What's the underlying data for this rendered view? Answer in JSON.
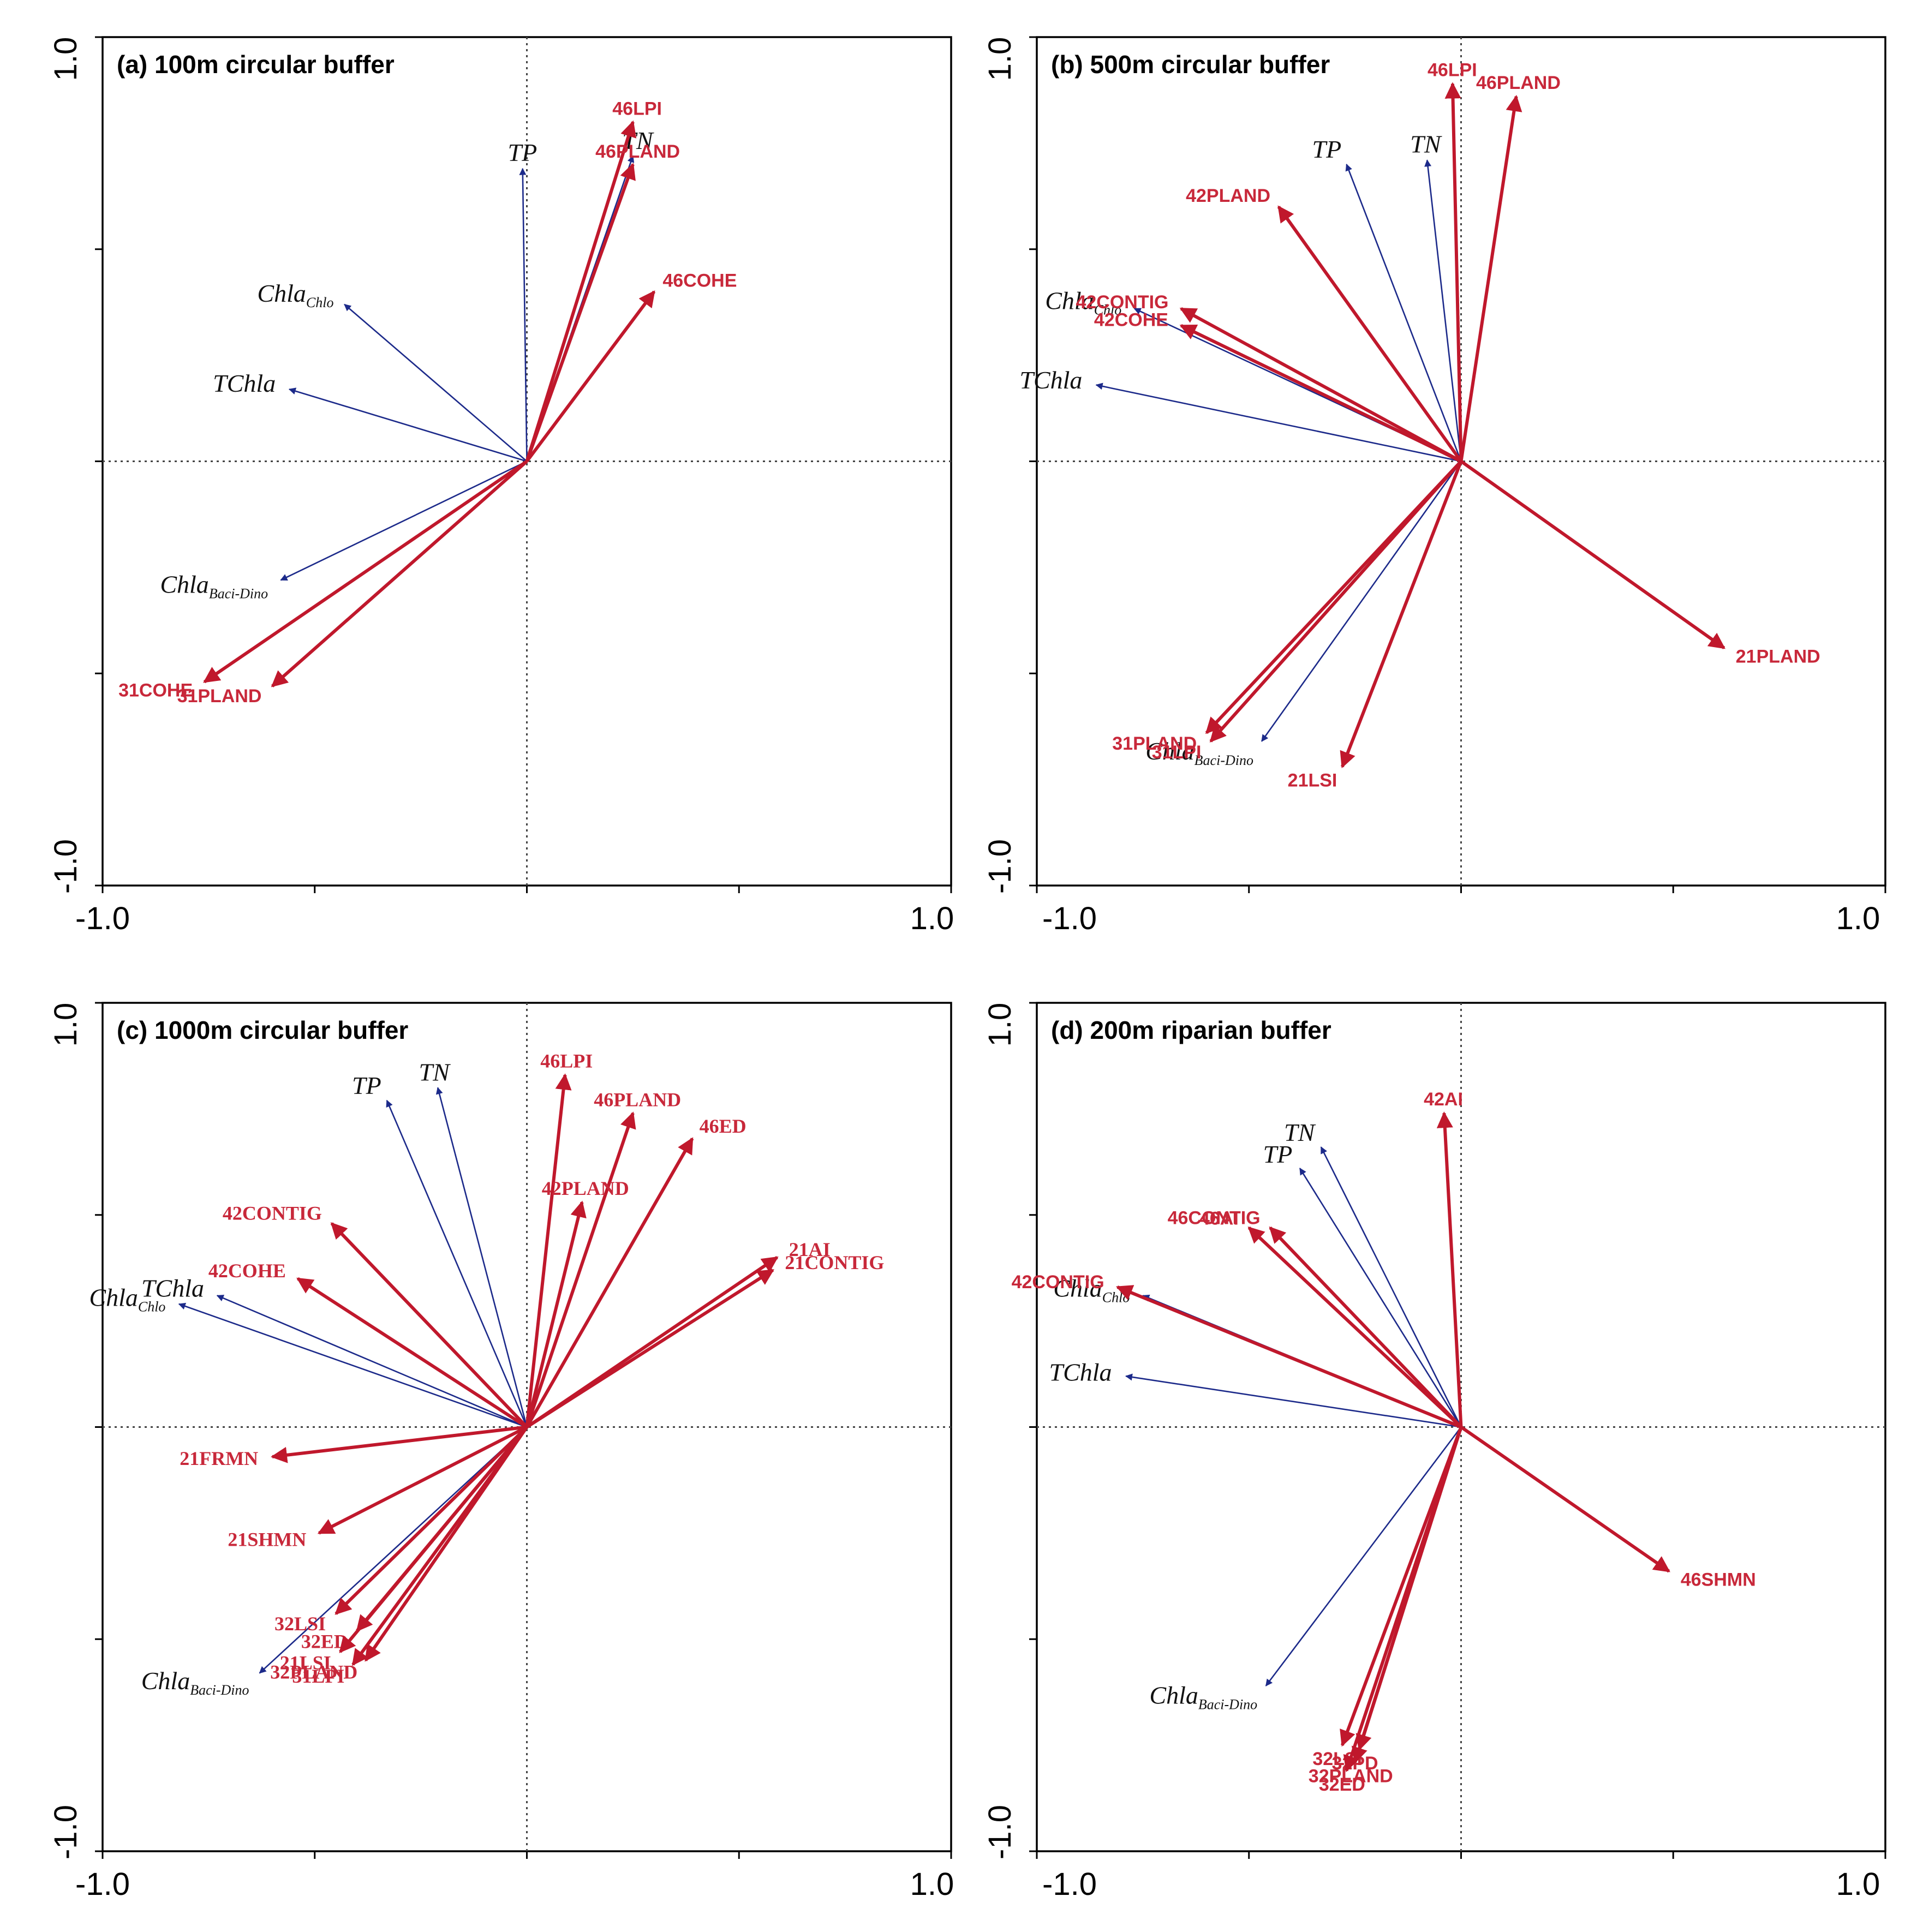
{
  "colors": {
    "environment": "#c0182c",
    "species": "#1c2a8a",
    "axis": "#000000"
  },
  "chart_data": [
    {
      "type": "biplot",
      "title": "(a) 100m circular buffer",
      "xlim": [
        -1.0,
        1.0
      ],
      "ylim": [
        -1.0,
        1.0
      ],
      "x_tick_labels": [
        "-1.0",
        "1.0"
      ],
      "y_tick_labels": [
        "-1.0",
        "1.0"
      ],
      "species": [
        {
          "name": "TP",
          "sub": "",
          "x": -0.01,
          "y": 0.69
        },
        {
          "name": "TN",
          "sub": "",
          "x": 0.25,
          "y": 0.72
        },
        {
          "name": "Chla",
          "sub": "Chlo",
          "x": -0.43,
          "y": 0.37
        },
        {
          "name": "TChla",
          "sub": "",
          "x": -0.56,
          "y": 0.17
        },
        {
          "name": "Chla",
          "sub": "Baci-Dino",
          "x": -0.58,
          "y": -0.28
        }
      ],
      "environment": [
        {
          "name": "46LPI",
          "x": 0.25,
          "y": 0.8
        },
        {
          "name": "46PLAND",
          "x": 0.25,
          "y": 0.7
        },
        {
          "name": "46COHE",
          "x": 0.3,
          "y": 0.4
        },
        {
          "name": "31COHE",
          "x": -0.76,
          "y": -0.52
        },
        {
          "name": "31PLAND",
          "x": -0.6,
          "y": -0.53
        }
      ]
    },
    {
      "type": "biplot",
      "title": "(b) 500m circular buffer",
      "xlim": [
        -1.0,
        1.0
      ],
      "ylim": [
        -1.0,
        1.0
      ],
      "x_tick_labels": [
        "-1.0",
        "1.0"
      ],
      "y_tick_labels": [
        "-1.0",
        "1.0"
      ],
      "species": [
        {
          "name": "TP",
          "sub": "",
          "x": -0.27,
          "y": 0.7
        },
        {
          "name": "TN",
          "sub": "",
          "x": -0.08,
          "y": 0.71
        },
        {
          "name": "Chla",
          "sub": "Chlo",
          "x": -0.77,
          "y": 0.36
        },
        {
          "name": "TChla",
          "sub": "",
          "x": -0.86,
          "y": 0.18
        },
        {
          "name": "Chla",
          "sub": "Baci-Dino",
          "x": -0.47,
          "y": -0.66
        }
      ],
      "environment": [
        {
          "name": "46LPI",
          "x": -0.02,
          "y": 0.89
        },
        {
          "name": "46PLAND",
          "x": 0.13,
          "y": 0.86
        },
        {
          "name": "42PLAND",
          "x": -0.43,
          "y": 0.6
        },
        {
          "name": "42CONTIG",
          "x": -0.66,
          "y": 0.36
        },
        {
          "name": "42COHE",
          "x": -0.66,
          "y": 0.32
        },
        {
          "name": "21PLAND",
          "x": 0.62,
          "y": -0.44
        },
        {
          "name": "31PLAND",
          "x": -0.6,
          "y": -0.64
        },
        {
          "name": "31LPI",
          "x": -0.59,
          "y": -0.66
        },
        {
          "name": "21LSI",
          "x": -0.28,
          "y": -0.72
        }
      ]
    },
    {
      "type": "biplot",
      "title": "(c) 1000m circular buffer",
      "xlim": [
        -1.0,
        1.0
      ],
      "ylim": [
        -1.0,
        1.0
      ],
      "x_tick_labels": [
        "-1.0",
        "1.0"
      ],
      "y_tick_labels": [
        "-1.0",
        "1.0"
      ],
      "species": [
        {
          "name": "TP",
          "sub": "",
          "x": -0.33,
          "y": 0.77
        },
        {
          "name": "TN",
          "sub": "",
          "x": -0.21,
          "y": 0.8
        },
        {
          "name": "TChla",
          "sub": "",
          "x": -0.73,
          "y": 0.31
        },
        {
          "name": "Chla",
          "sub": "Chlo",
          "x": -0.82,
          "y": 0.29
        },
        {
          "name": "Chla",
          "sub": "Baci-Dino",
          "x": -0.63,
          "y": -0.58
        }
      ],
      "environment": [
        {
          "name": "46LPI",
          "x": 0.09,
          "y": 0.83
        },
        {
          "name": "46PLAND",
          "x": 0.25,
          "y": 0.74
        },
        {
          "name": "46ED",
          "x": 0.39,
          "y": 0.68
        },
        {
          "name": "42PLAND",
          "x": 0.13,
          "y": 0.53
        },
        {
          "name": "42CONTIG",
          "x": -0.46,
          "y": 0.48
        },
        {
          "name": "42COHE",
          "x": -0.54,
          "y": 0.35
        },
        {
          "name": "21AI",
          "x": 0.59,
          "y": 0.4
        },
        {
          "name": "21CONTIG",
          "x": 0.58,
          "y": 0.37
        },
        {
          "name": "21FRMN",
          "x": -0.6,
          "y": -0.07
        },
        {
          "name": "21SHMN",
          "x": -0.49,
          "y": -0.25
        },
        {
          "name": "32LSI",
          "x": -0.45,
          "y": -0.44
        },
        {
          "name": "32ED",
          "x": -0.4,
          "y": -0.48
        },
        {
          "name": "21LSI",
          "x": -0.44,
          "y": -0.53
        },
        {
          "name": "31LPI",
          "x": -0.41,
          "y": -0.56
        },
        {
          "name": "32PLAND",
          "x": -0.38,
          "y": -0.55
        }
      ]
    },
    {
      "type": "biplot",
      "title": "(d) 200m riparian buffer",
      "xlim": [
        -1.0,
        1.0
      ],
      "ylim": [
        -1.0,
        1.0
      ],
      "x_tick_labels": [
        "-1.0",
        "1.0"
      ],
      "y_tick_labels": [
        "-1.0",
        "1.0"
      ],
      "species": [
        {
          "name": "TN",
          "sub": "",
          "x": -0.33,
          "y": 0.66
        },
        {
          "name": "TP",
          "sub": "",
          "x": -0.38,
          "y": 0.61
        },
        {
          "name": "Chla",
          "sub": "Chlo",
          "x": -0.75,
          "y": 0.31
        },
        {
          "name": "TChla",
          "sub": "",
          "x": -0.79,
          "y": 0.12
        },
        {
          "name": "Chla",
          "sub": "Baci-Dino",
          "x": -0.46,
          "y": -0.61
        }
      ],
      "environment": [
        {
          "name": "42AI",
          "x": -0.04,
          "y": 0.74
        },
        {
          "name": "46CONTIG",
          "x": -0.45,
          "y": 0.47
        },
        {
          "name": "46AI",
          "x": -0.5,
          "y": 0.47
        },
        {
          "name": "42CONTIG",
          "x": -0.81,
          "y": 0.33
        },
        {
          "name": "46SHMN",
          "x": 0.49,
          "y": -0.34
        },
        {
          "name": "32LSI",
          "x": -0.28,
          "y": -0.75
        },
        {
          "name": "32PD",
          "x": -0.24,
          "y": -0.76
        },
        {
          "name": "32PLAND",
          "x": -0.25,
          "y": -0.79
        },
        {
          "name": "32ED",
          "x": -0.27,
          "y": -0.81
        }
      ]
    }
  ]
}
